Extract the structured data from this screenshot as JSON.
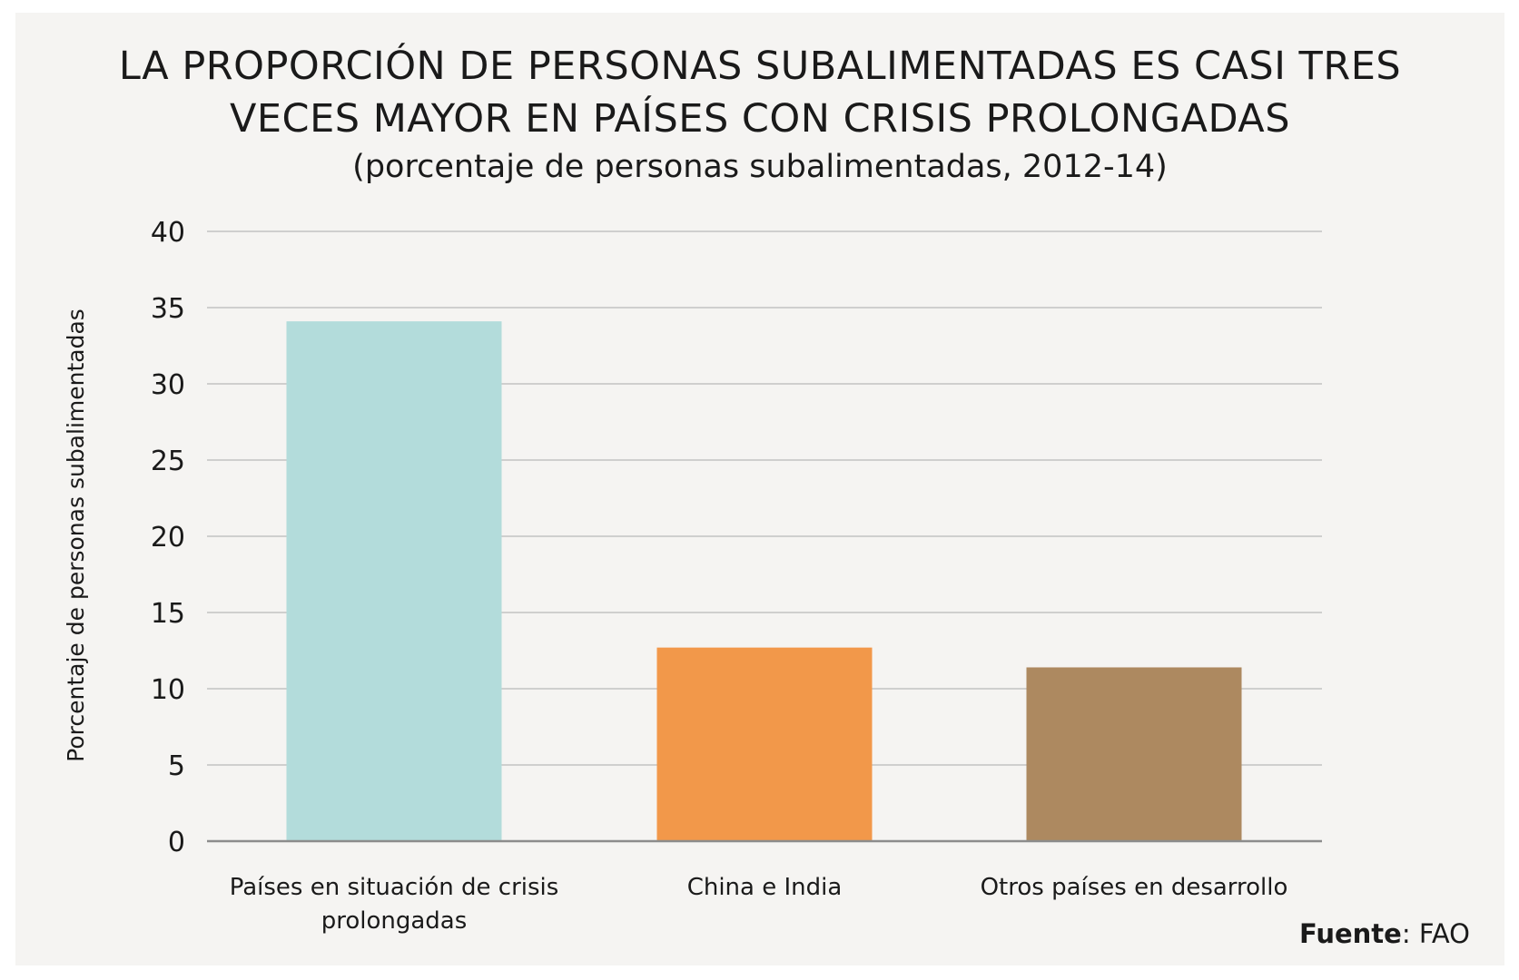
{
  "chart_data": {
    "type": "bar",
    "title_lines": [
      "LA PROPORCIÓN DE PERSONAS SUBALIMENTADAS ES CASI TRES",
      "VECES MAYOR EN PAÍSES CON CRISIS PROLONGADAS"
    ],
    "subtitle": "(porcentaje de personas subalimentadas, 2012-14)",
    "ylabel": "Porcentaje de personas subalimentadas",
    "xlabel": "",
    "ylim": [
      0,
      40
    ],
    "yticks": [
      "0",
      "5",
      "10",
      "15",
      "20",
      "25",
      "30",
      "35",
      "40"
    ],
    "grid": true,
    "categories": [
      [
        "Países en situación de crisis",
        "prolongadas"
      ],
      [
        "China e India"
      ],
      [
        "Otros países en desarrollo"
      ]
    ],
    "values": [
      34.1,
      12.7,
      11.4
    ],
    "colors": [
      "#b3dcdb",
      "#f2984a",
      "#ad8960"
    ],
    "source_label": "Fuente",
    "source_value": ": FAO"
  },
  "colors": {
    "background": "#f5f4f2",
    "gridline": "#b9b9b9",
    "axis": "#8c8c8c"
  }
}
